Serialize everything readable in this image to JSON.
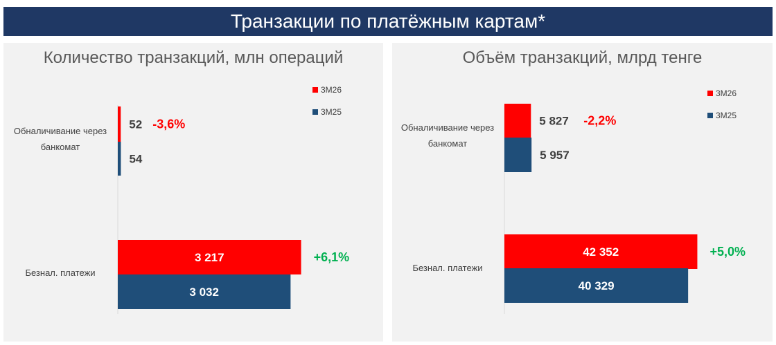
{
  "banner": {
    "title": "Транзакции по платёжным картам*"
  },
  "colors": {
    "series_current": "#ff0000",
    "series_previous": "#1f4e79",
    "up": "#00b050",
    "down": "#ff0000",
    "banner_bg": "#1f3864"
  },
  "chart_data": [
    {
      "type": "bar",
      "orientation": "horizontal",
      "title": "Количество транзакций, млн операций",
      "categories": [
        "Обналичивание через банкомат",
        "Безнал. платежи"
      ],
      "series": [
        {
          "name": "3М26",
          "values": [
            52,
            3217
          ],
          "labels": [
            "52",
            "3 217"
          ]
        },
        {
          "name": "3М25",
          "values": [
            54,
            3032
          ],
          "labels": [
            "54",
            "3 032"
          ]
        }
      ],
      "changes": [
        "-3,6%",
        "+6,1%"
      ],
      "legend_position": "top-right",
      "grid": false
    },
    {
      "type": "bar",
      "orientation": "horizontal",
      "title": "Объём транзакций, млрд тенге",
      "categories": [
        "Обналичивание через банкомат",
        "Безнал. платежи"
      ],
      "series": [
        {
          "name": "3М26",
          "values": [
            5827,
            42352
          ],
          "labels": [
            "5 827",
            "42 352"
          ]
        },
        {
          "name": "3М25",
          "values": [
            5957,
            40329
          ],
          "labels": [
            "5 957",
            "40 329"
          ]
        }
      ],
      "changes": [
        "-2,2%",
        "+5,0%"
      ],
      "legend_position": "top-right",
      "grid": false
    }
  ]
}
